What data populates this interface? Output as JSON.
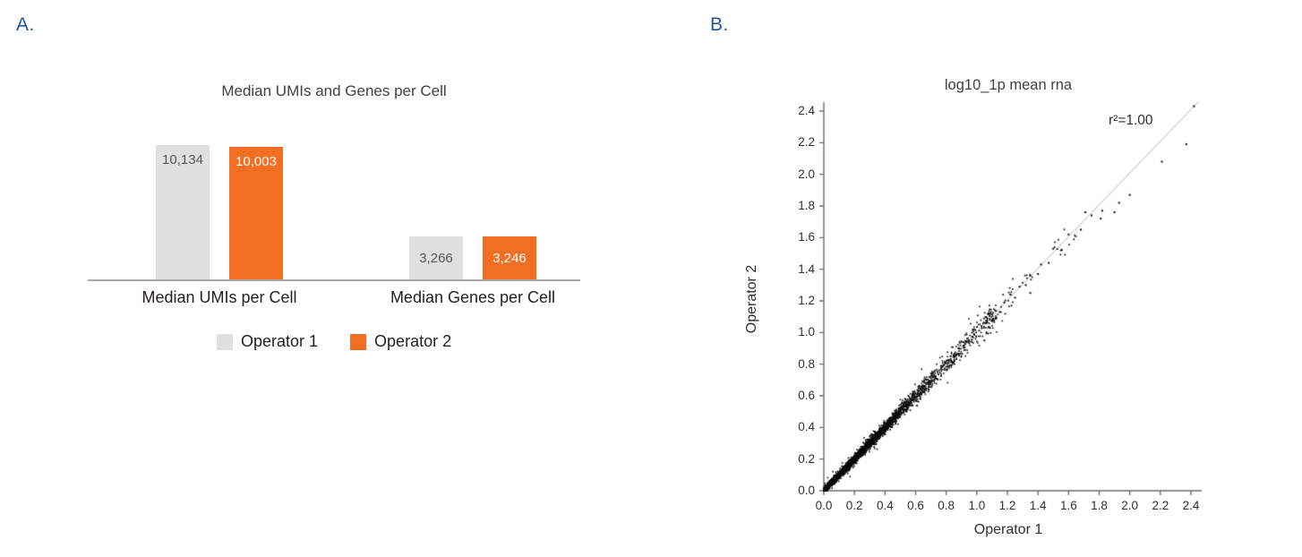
{
  "panel_a": {
    "label": "A."
  },
  "panel_b": {
    "label": "B."
  },
  "chart_data": [
    {
      "type": "bar",
      "title": "Median UMIs and Genes per Cell",
      "categories": [
        "Median UMIs per Cell",
        "Median Genes per Cell"
      ],
      "series": [
        {
          "name": "Operator 1",
          "color": "#e0e0de",
          "values": [
            10134,
            3266
          ],
          "value_labels": [
            "10,134",
            "3,266"
          ]
        },
        {
          "name": "Operator 2",
          "color": "#f16e22",
          "values": [
            10003,
            3246
          ],
          "value_labels": [
            "10,003",
            "3,246"
          ]
        }
      ],
      "ylim": [
        0,
        10700
      ],
      "axis_line_color": "#a9a9a9",
      "value_label_colors": {
        "operator_1": "#55565a",
        "operator_2": "#ffffff"
      },
      "legend_position": "bottom",
      "grid": false
    },
    {
      "type": "scatter",
      "title": "log10_1p mean rna",
      "xlabel": "Operator 1",
      "ylabel": "Operator 2",
      "annotation": "r²=1.00",
      "xlim": [
        0,
        2.4
      ],
      "ylim": [
        0,
        2.4
      ],
      "xtick_labels": [
        "0.0",
        "0.2",
        "0.4",
        "0.6",
        "0.8",
        "1.0",
        "1.2",
        "1.4",
        "1.6",
        "1.8",
        "2.0",
        "2.2",
        "2.4"
      ],
      "ytick_labels": [
        "0.0",
        "0.2",
        "0.4",
        "0.6",
        "0.8",
        "1.0",
        "1.2",
        "1.4",
        "1.6",
        "1.8",
        "2.0",
        "2.2",
        "2.4"
      ],
      "point_color": "#0a0a0a",
      "axis_color": "#6e6e6e",
      "identity_line": {
        "present": true,
        "color": "#b4b4b4",
        "from": [
          0,
          0
        ],
        "to": [
          2.45,
          2.46
        ]
      },
      "distribution_note": "Dense cloud of points tightly following y=x from (0,0) thinning out above ~1.0; isolated points continue along the diagonal up to (2.42,2.43).",
      "generation": {
        "seed": 42,
        "n_dense": 3400,
        "half_normal_sigma": 0.28,
        "uniform_fraction": 0.3,
        "uniform_max": 1.12,
        "uniform_power": 1.6,
        "max_dense_value": 1.15,
        "noise_base": 0.006,
        "noise_slope": 0.018,
        "straggler_fraction": 0.03,
        "straggler_multiplier": 2.8
      },
      "clusters": [
        {
          "cx": 1.08,
          "cy": 1.09,
          "n": 25,
          "sd": 0.04
        },
        {
          "cx": 1.2,
          "cy": 1.21,
          "n": 14,
          "sd": 0.04
        },
        {
          "cx": 1.32,
          "cy": 1.33,
          "n": 8,
          "sd": 0.03
        },
        {
          "cx": 1.52,
          "cy": 1.53,
          "n": 7,
          "sd": 0.035
        },
        {
          "cx": 1.62,
          "cy": 1.6,
          "n": 5,
          "sd": 0.03
        }
      ],
      "outliers": [
        [
          2.42,
          2.43
        ],
        [
          2.37,
          2.19
        ],
        [
          2.21,
          2.08
        ],
        [
          2.0,
          1.87
        ],
        [
          1.93,
          1.82
        ],
        [
          1.9,
          1.76
        ],
        [
          1.82,
          1.77
        ],
        [
          1.81,
          1.72
        ],
        [
          1.75,
          1.74
        ],
        [
          1.71,
          1.76
        ],
        [
          1.68,
          1.65
        ],
        [
          1.6,
          1.62
        ],
        [
          1.55,
          1.52
        ],
        [
          1.5,
          1.53
        ],
        [
          1.47,
          1.44
        ],
        [
          1.42,
          1.43
        ],
        [
          1.4,
          1.37
        ],
        [
          1.35,
          1.36
        ],
        [
          1.35,
          1.25
        ],
        [
          1.32,
          1.3
        ],
        [
          1.28,
          1.29
        ],
        [
          1.25,
          1.22
        ],
        [
          1.22,
          1.24
        ],
        [
          1.18,
          1.19
        ],
        [
          1.15,
          1.13
        ],
        [
          1.12,
          1.14
        ],
        [
          1.1,
          1.08
        ],
        [
          1.05,
          0.95
        ]
      ]
    }
  ]
}
